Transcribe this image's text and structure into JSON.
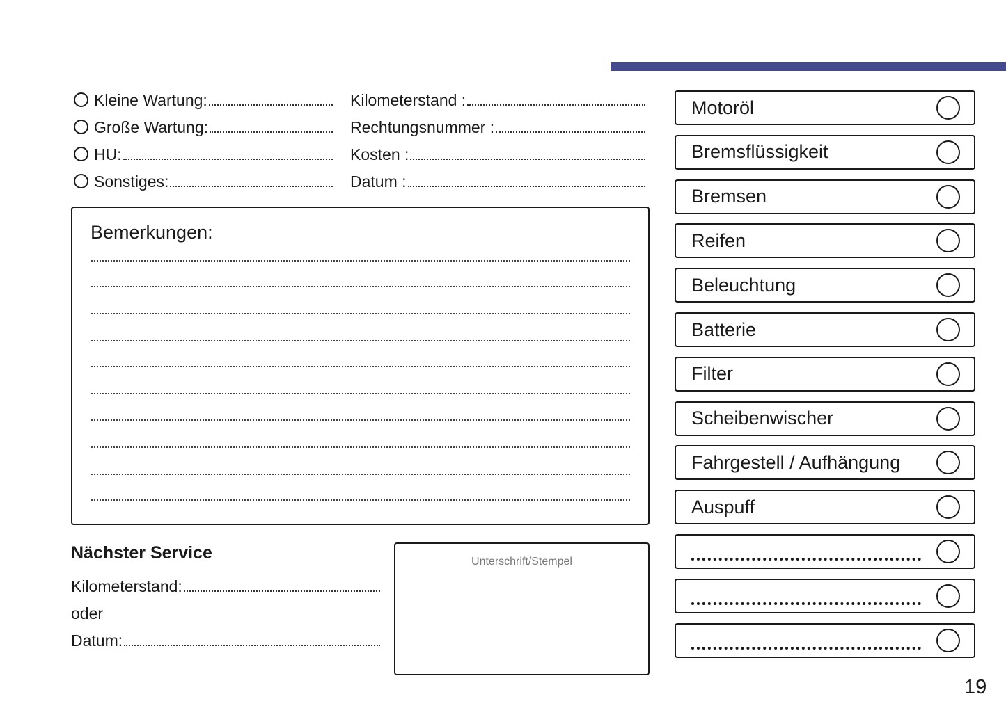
{
  "header": {
    "accent_color": "#454a8f"
  },
  "service_type": [
    {
      "label": "Kleine Wartung:"
    },
    {
      "label": "Große Wartung:"
    },
    {
      "label": "HU:"
    },
    {
      "label": "Sonstiges:"
    }
  ],
  "details": [
    {
      "label": "Kilometerstand :"
    },
    {
      "label": "Rechtungsnummer :"
    },
    {
      "label": "Kosten :"
    },
    {
      "label": "Datum :"
    }
  ],
  "remarks": {
    "title": "Bemerkungen:"
  },
  "next_service": {
    "title": "Nächster Service",
    "km_label": "Kilometerstand:",
    "or_label": "oder",
    "date_label": "Datum:"
  },
  "signature": {
    "label": "Unterschrift/Stempel"
  },
  "checklist": [
    {
      "label": "Motoröl"
    },
    {
      "label": "Bremsflüssigkeit"
    },
    {
      "label": "Bremsen"
    },
    {
      "label": "Reifen"
    },
    {
      "label": "Beleuchtung"
    },
    {
      "label": "Batterie"
    },
    {
      "label": "Filter"
    },
    {
      "label": "Scheibenwischer"
    },
    {
      "label": "Fahrgestell / Aufhängung"
    },
    {
      "label": "Auspuff"
    },
    {
      "label": ""
    },
    {
      "label": ""
    },
    {
      "label": ""
    }
  ],
  "page_number": "19"
}
